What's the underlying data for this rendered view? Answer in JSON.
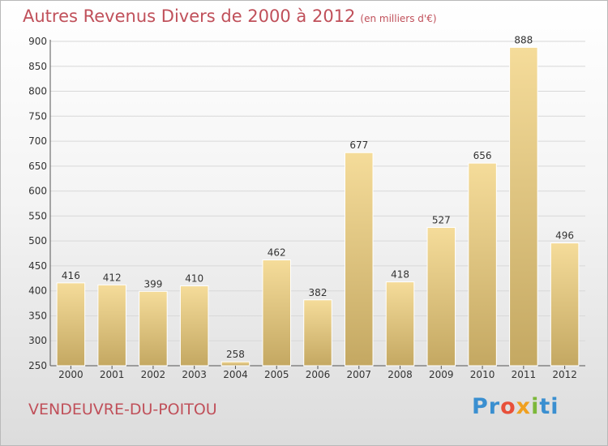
{
  "header": {
    "title": "Autres Revenus Divers de 2000 à 2012",
    "subtitle": "(en milliers d'€)"
  },
  "footer": {
    "commune": "VENDEUVRE-DU-POITOU",
    "logo_parts": [
      "Pr",
      "o",
      "x",
      "i",
      "ti"
    ]
  },
  "colors": {
    "title": "#c0505a",
    "bar_top": "#f5dc9a",
    "bar_bottom": "#c4a862"
  },
  "chart_data": {
    "type": "bar",
    "title": "Autres Revenus Divers de 2000 à 2012",
    "subtitle": "(en milliers d'€)",
    "xlabel": "",
    "ylabel": "",
    "categories": [
      "2000",
      "2001",
      "2002",
      "2003",
      "2004",
      "2005",
      "2006",
      "2007",
      "2008",
      "2009",
      "2010",
      "2011",
      "2012"
    ],
    "values": [
      416,
      412,
      399,
      410,
      258,
      462,
      382,
      677,
      418,
      527,
      656,
      888,
      496
    ],
    "ylim": [
      250,
      900
    ],
    "yticks": [
      250,
      300,
      350,
      400,
      450,
      500,
      550,
      600,
      650,
      700,
      750,
      800,
      850,
      900
    ],
    "grid": true
  }
}
